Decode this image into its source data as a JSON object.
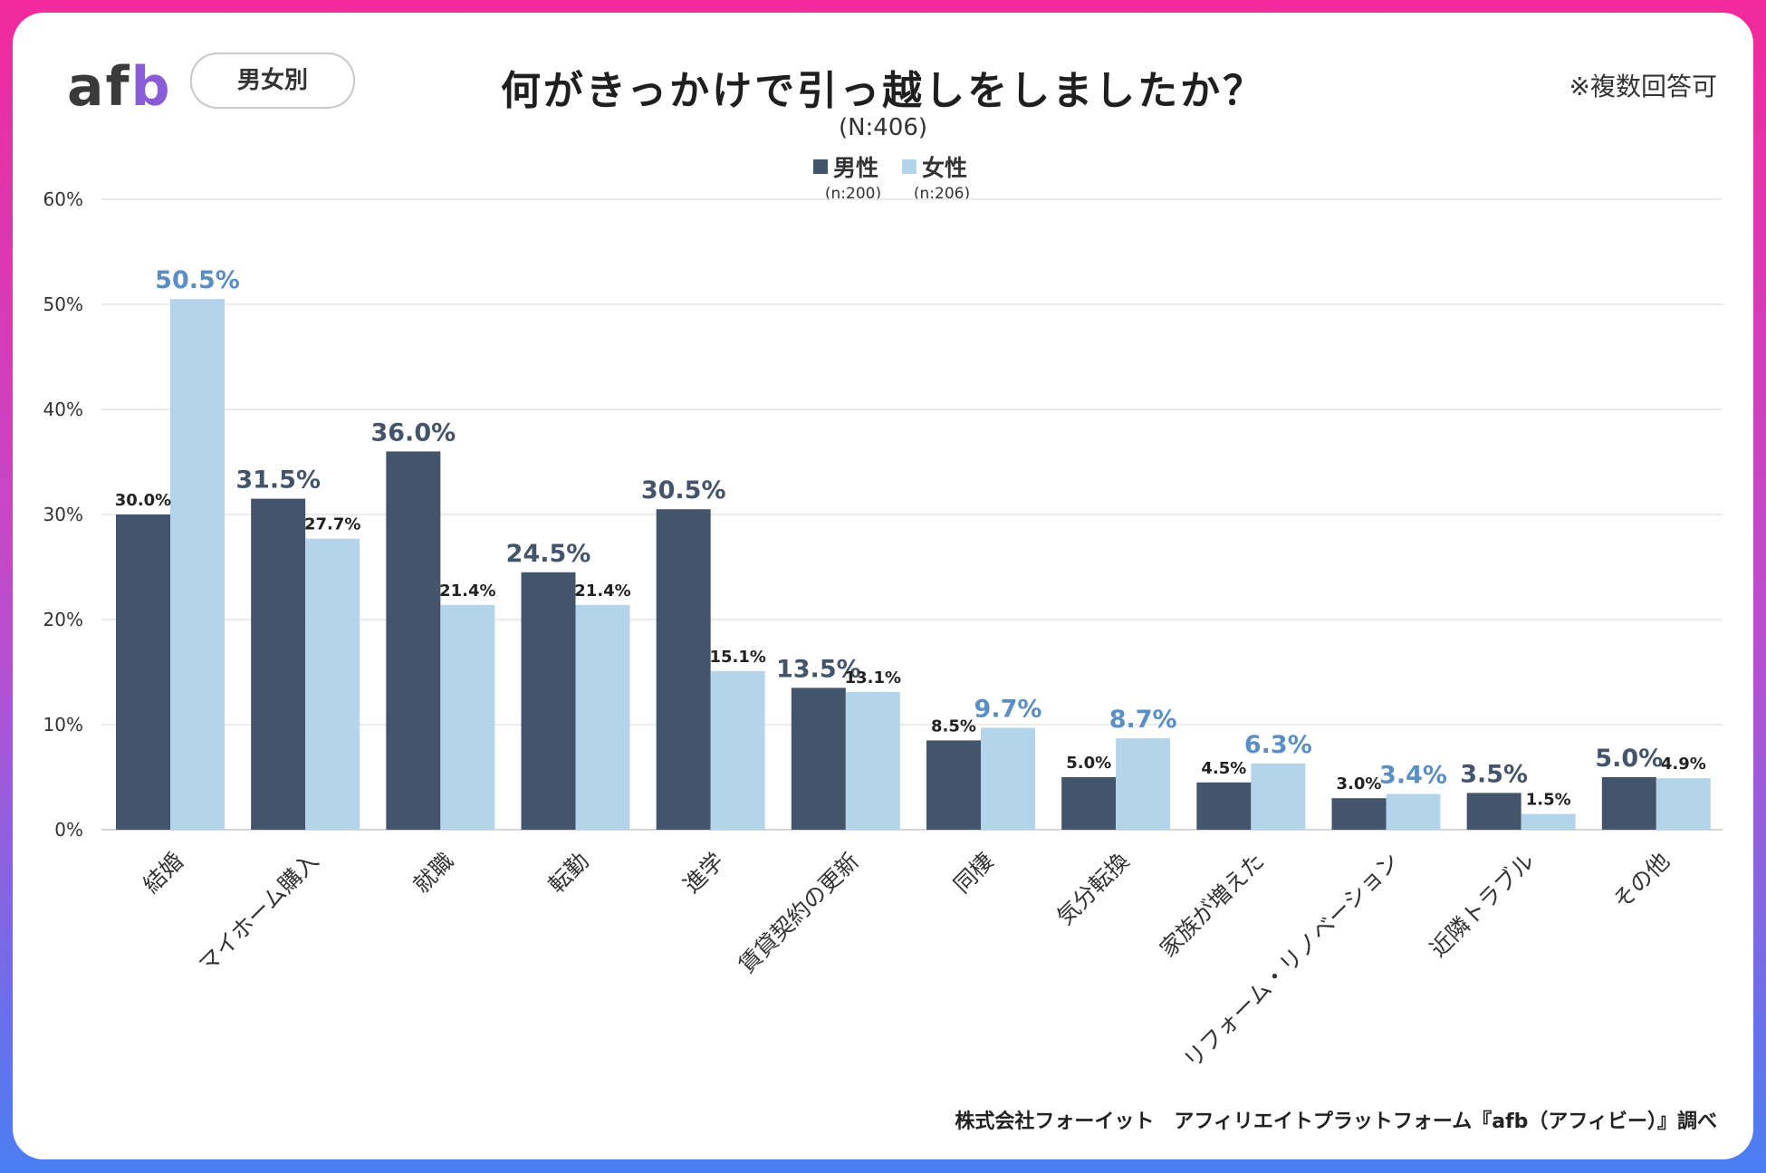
{
  "brand": {
    "logo_main": "af",
    "logo_accent": "b",
    "segment_label": "男女別"
  },
  "header": {
    "title": "何がきっかけで引っ越しをしましたか？",
    "sample": "(N:406)",
    "note": "※複数回答可"
  },
  "legend": [
    {
      "label": "男性",
      "n": "(n:200)",
      "color": "#44546a"
    },
    {
      "label": "女性",
      "n": "(n:206)",
      "color": "#b4d4ec"
    }
  ],
  "footer": "株式会社フォーイット　アフィリエイトプラットフォーム『afb（アフィビー）』調べ",
  "chart_data": {
    "type": "bar",
    "title": "何がきっかけで引っ越しをしましたか？",
    "categories": [
      "結婚",
      "マイホーム購入",
      "就職",
      "転勤",
      "進学",
      "賃貸契約の更新",
      "同棲",
      "気分転換",
      "家族が増えた",
      "リフォーム・リノベーション",
      "近隣トラブル",
      "その他"
    ],
    "series": [
      {
        "name": "男性",
        "color": "#44546a",
        "highlight_color": "#44546a",
        "values": [
          30.0,
          31.5,
          36.0,
          24.5,
          30.5,
          13.5,
          8.5,
          5.0,
          4.5,
          3.0,
          3.5,
          5.0
        ]
      },
      {
        "name": "女性",
        "color": "#b4d4ec",
        "highlight_color": "#5b8fc4",
        "values": [
          50.5,
          27.7,
          21.4,
          21.4,
          15.1,
          13.1,
          9.7,
          8.7,
          6.3,
          3.4,
          1.5,
          4.9
        ]
      }
    ],
    "y_ticks": [
      "0%",
      "10%",
      "20%",
      "30%",
      "40%",
      "50%",
      "60%"
    ],
    "ylim": [
      0,
      60
    ],
    "grid": true,
    "legend_position": "top-center"
  }
}
